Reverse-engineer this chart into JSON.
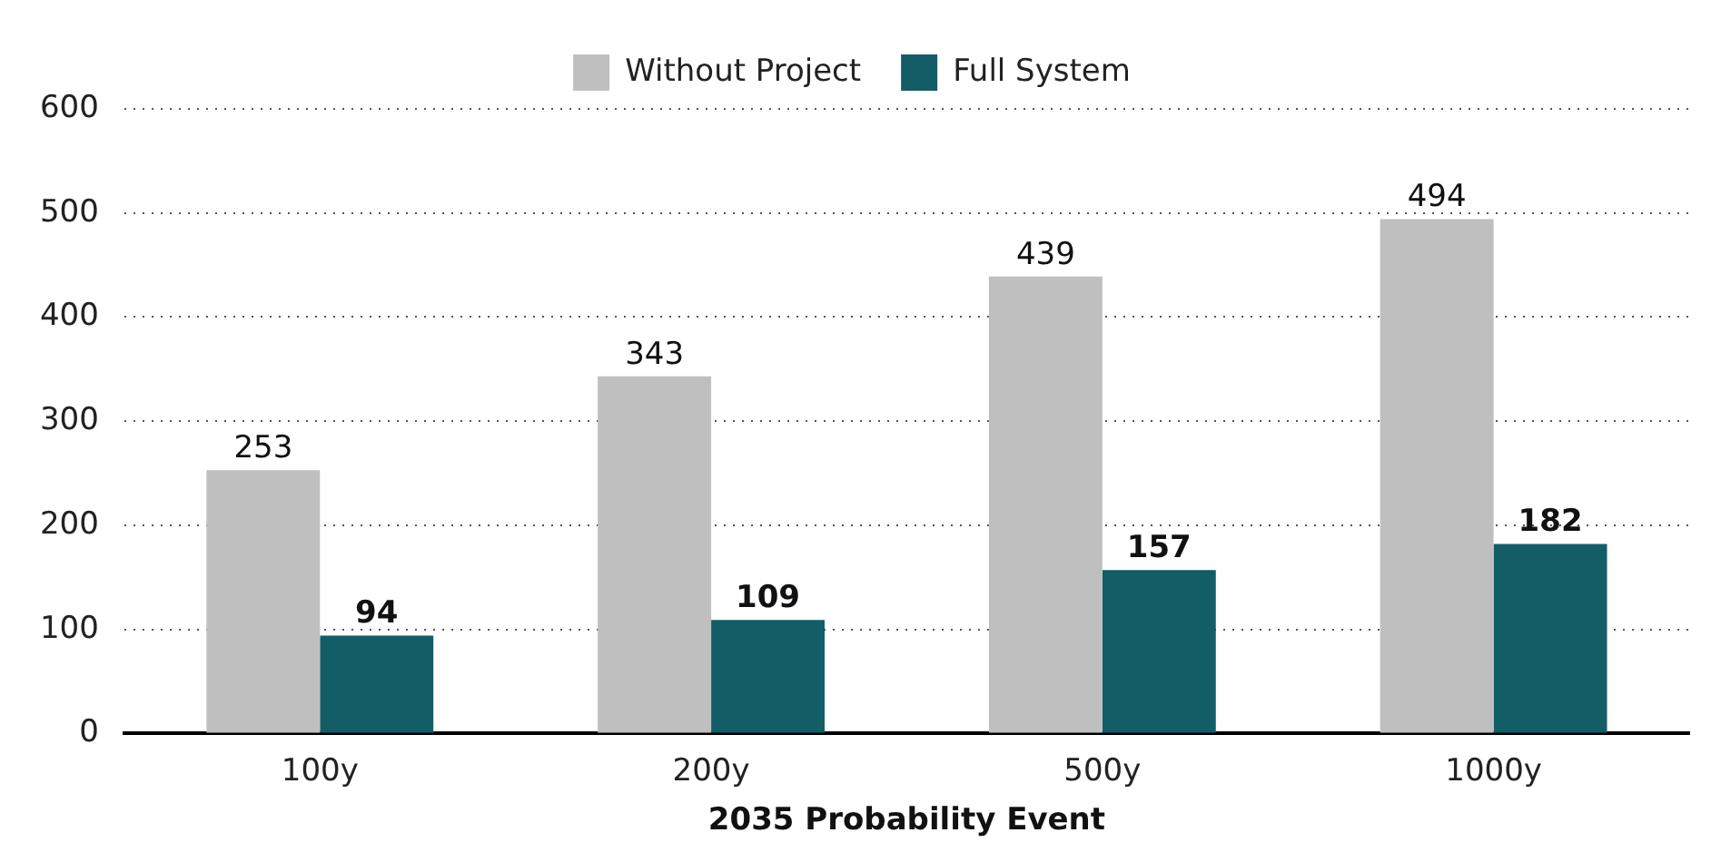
{
  "chart_data": {
    "type": "bar",
    "xlabel": "2035 Probability Event",
    "categories": [
      "100y",
      "200y",
      "500y",
      "1000y"
    ],
    "series": [
      {
        "name": "Without Project",
        "color": "#bfbfbf",
        "values": [
          253,
          343,
          439,
          494
        ]
      },
      {
        "name": "Full System",
        "color": "#135d66",
        "values": [
          94,
          109,
          157,
          182
        ]
      }
    ],
    "ylim": [
      0,
      600
    ],
    "yticks": [
      0,
      100,
      200,
      300,
      400,
      500,
      600
    ],
    "grid": "y",
    "legend": "top",
    "data_labels": true
  }
}
